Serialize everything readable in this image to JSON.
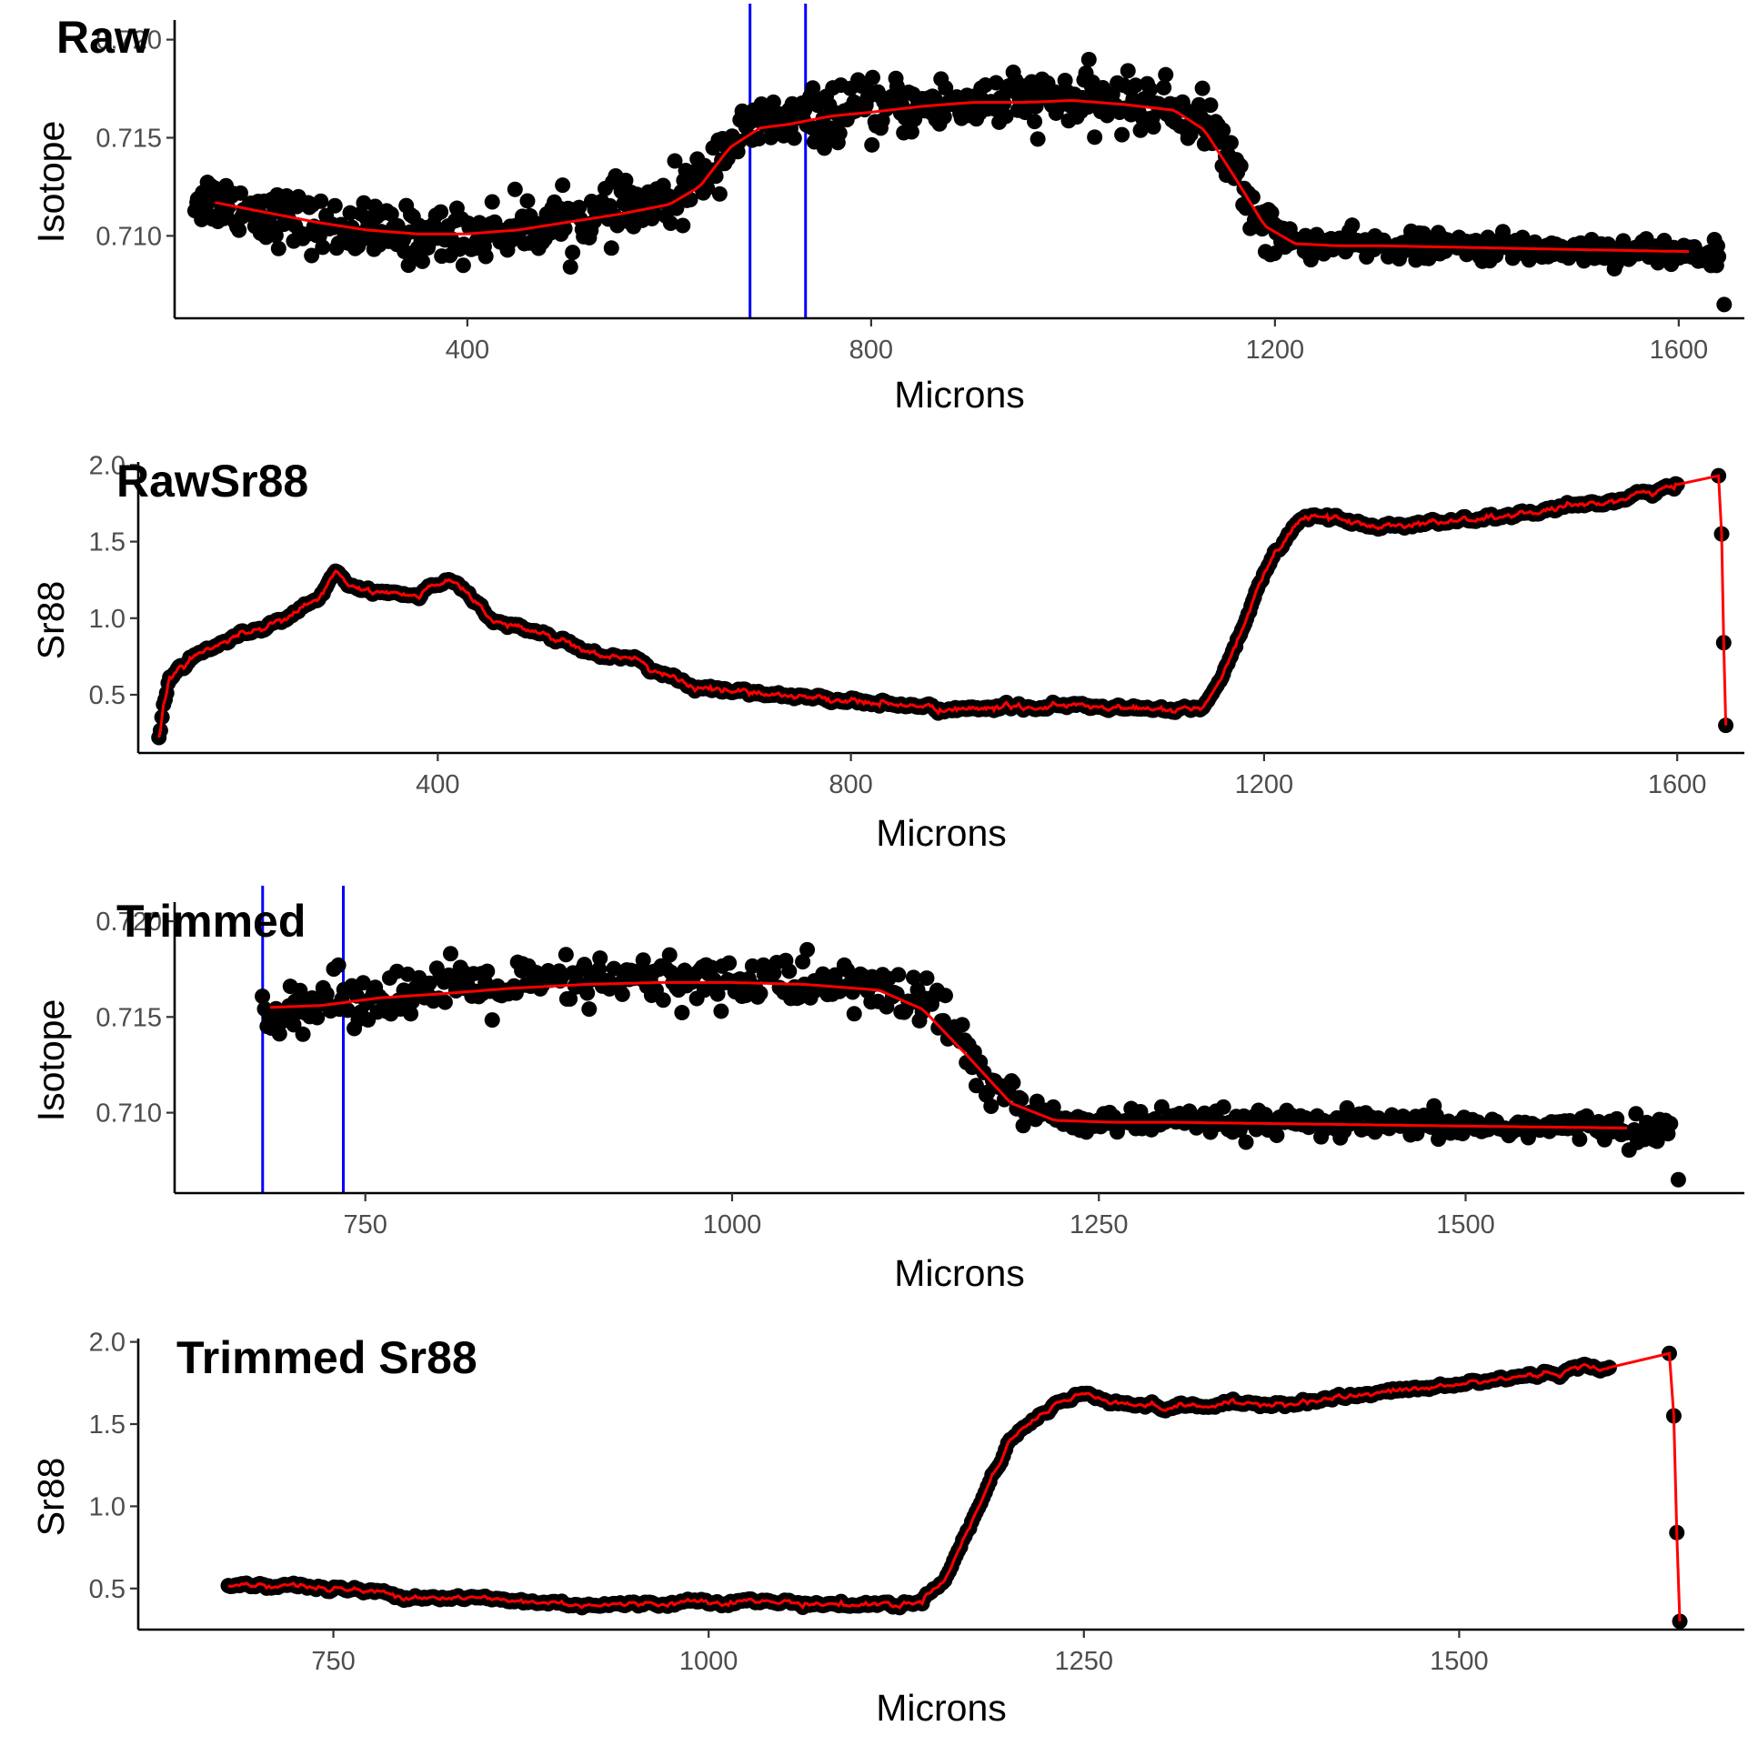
{
  "colors": {
    "points": "#000000",
    "smooth_line": "#ff0000",
    "markers": "#0000ff",
    "background": "#ffffff"
  },
  "chart_data": [
    {
      "id": "raw",
      "type": "scatter",
      "title": "Raw",
      "xlabel": "Microns",
      "ylabel": "Isotope",
      "xlim": [
        110,
        1665
      ],
      "ylim": [
        0.7058,
        0.721
      ],
      "xticks": [
        400,
        800,
        1200,
        1600
      ],
      "xtick_labels": [
        "400",
        "800",
        "1200",
        "1600"
      ],
      "yticks": [
        0.71,
        0.715,
        0.72
      ],
      "ytick_labels": [
        "0.710",
        "0.715",
        "0.720"
      ],
      "vlines": [
        680,
        735
      ],
      "grid": false,
      "noise_sd": 0.0006,
      "series": [
        {
          "name": "",
          "kind": "points",
          "x": [
            130,
            150,
            200,
            250,
            300,
            350,
            400,
            450,
            500,
            550,
            600,
            630,
            660,
            690,
            720,
            760,
            800,
            850,
            900,
            950,
            1000,
            1050,
            1100,
            1140,
            1170,
            1200,
            1230,
            1260,
            1300,
            1400,
            1500,
            1600,
            1640
          ],
          "y": [
            0.712,
            0.7118,
            0.7112,
            0.7105,
            0.7102,
            0.71,
            0.7101,
            0.7104,
            0.7108,
            0.7112,
            0.7117,
            0.7128,
            0.7148,
            0.7157,
            0.7158,
            0.7162,
            0.7164,
            0.7166,
            0.7168,
            0.7169,
            0.7169,
            0.7168,
            0.7165,
            0.7155,
            0.712,
            0.71,
            0.7096,
            0.7095,
            0.7095,
            0.7094,
            0.7093,
            0.7092,
            0.709
          ]
        },
        {
          "name": "",
          "kind": "smooth",
          "x": [
            150,
            200,
            250,
            300,
            350,
            400,
            450,
            500,
            550,
            600,
            630,
            660,
            690,
            720,
            760,
            800,
            850,
            900,
            950,
            1000,
            1050,
            1100,
            1130,
            1160,
            1190,
            1220,
            1260,
            1300,
            1400,
            1500,
            1610
          ],
          "y": [
            0.7117,
            0.7112,
            0.7107,
            0.7103,
            0.7101,
            0.7101,
            0.7103,
            0.7107,
            0.7111,
            0.7116,
            0.7125,
            0.7145,
            0.7155,
            0.7157,
            0.7161,
            0.7163,
            0.7166,
            0.7168,
            0.7168,
            0.7169,
            0.7167,
            0.7164,
            0.7154,
            0.713,
            0.7105,
            0.7096,
            0.7095,
            0.7095,
            0.7094,
            0.7093,
            0.7092
          ]
        }
      ]
    },
    {
      "id": "rawsr88",
      "type": "scatter",
      "title": "RawSr88",
      "xlabel": "Microns",
      "ylabel": "Sr88",
      "xlim": [
        110,
        1665
      ],
      "ylim": [
        0.12,
        2.02
      ],
      "xticks": [
        400,
        800,
        1200,
        1600
      ],
      "xtick_labels": [
        "400",
        "800",
        "1200",
        "1600"
      ],
      "yticks": [
        0.5,
        1.0,
        1.5,
        2.0
      ],
      "ytick_labels": [
        "0.5",
        "1.0",
        "1.5",
        "2.0"
      ],
      "vlines": [],
      "grid": false,
      "noise_sd": 0.008,
      "series": [
        {
          "name": "",
          "kind": "trace",
          "x": [
            130,
            135,
            140,
            160,
            200,
            250,
            285,
            300,
            310,
            340,
            380,
            400,
            410,
            420,
            450,
            500,
            550,
            600,
            650,
            700,
            800,
            900,
            1000,
            1100,
            1140,
            1160,
            1200,
            1230,
            1250,
            1300,
            1400,
            1500,
            1600,
            1640,
            1643,
            1645,
            1647
          ],
          "y": [
            0.21,
            0.45,
            0.62,
            0.74,
            0.87,
            1.0,
            1.12,
            1.3,
            1.22,
            1.17,
            1.14,
            1.23,
            1.26,
            1.23,
            1.0,
            0.9,
            0.78,
            0.7,
            0.54,
            0.52,
            0.46,
            0.4,
            0.43,
            0.4,
            0.41,
            0.6,
            1.3,
            1.62,
            1.68,
            1.6,
            1.64,
            1.72,
            1.86,
            1.93,
            1.55,
            0.84,
            0.3
          ]
        }
      ]
    },
    {
      "id": "trimmed",
      "type": "scatter",
      "title": "Trimmed",
      "xlabel": "Microns",
      "ylabel": "Isotope",
      "xlim": [
        620,
        1690
      ],
      "ylim": [
        0.7058,
        0.721
      ],
      "xticks": [
        750,
        1000,
        1250,
        1500
      ],
      "xtick_labels": [
        "750",
        "1000",
        "1250",
        "1500"
      ],
      "yticks": [
        0.71,
        0.715,
        0.72
      ],
      "ytick_labels": [
        "0.710",
        "0.715",
        "0.720"
      ],
      "vlines": [
        680,
        735
      ],
      "grid": false,
      "noise_sd": 0.0006,
      "series": [
        {
          "name": "",
          "kind": "points",
          "x": [
            680,
            720,
            760,
            800,
            850,
            900,
            950,
            1000,
            1050,
            1100,
            1140,
            1170,
            1200,
            1230,
            1260,
            1300,
            1400,
            1500,
            1600,
            1640
          ],
          "y": [
            0.7155,
            0.7158,
            0.7162,
            0.7164,
            0.7166,
            0.7168,
            0.7169,
            0.7169,
            0.7168,
            0.7165,
            0.7155,
            0.712,
            0.71,
            0.7096,
            0.7095,
            0.7095,
            0.7094,
            0.7093,
            0.7092,
            0.709
          ]
        },
        {
          "name": "",
          "kind": "smooth",
          "x": [
            685,
            720,
            760,
            800,
            850,
            900,
            950,
            1000,
            1050,
            1100,
            1130,
            1160,
            1190,
            1220,
            1260,
            1300,
            1400,
            1500,
            1610
          ],
          "y": [
            0.7155,
            0.7156,
            0.716,
            0.7162,
            0.7165,
            0.7167,
            0.7168,
            0.7168,
            0.7167,
            0.7164,
            0.7154,
            0.713,
            0.7105,
            0.7096,
            0.7095,
            0.7095,
            0.7094,
            0.7093,
            0.7092
          ]
        }
      ]
    },
    {
      "id": "trimmedsr88",
      "type": "scatter",
      "title": "Trimmed Sr88",
      "xlabel": "Microns",
      "ylabel": "Sr88",
      "xlim": [
        620,
        1690
      ],
      "ylim": [
        0.25,
        2.02
      ],
      "xticks": [
        750,
        1000,
        1250,
        1500
      ],
      "xtick_labels": [
        "750",
        "1000",
        "1250",
        "1500"
      ],
      "yticks": [
        0.5,
        1.0,
        1.5,
        2.0
      ],
      "ytick_labels": [
        "0.5",
        "1.0",
        "1.5",
        "2.0"
      ],
      "vlines": [],
      "grid": false,
      "noise_sd": 0.008,
      "series": [
        {
          "name": "",
          "kind": "trace",
          "x": [
            680,
            720,
            800,
            900,
            950,
            1000,
            1100,
            1140,
            1160,
            1180,
            1200,
            1230,
            1250,
            1300,
            1400,
            1500,
            1600,
            1640,
            1643,
            1645,
            1647
          ],
          "y": [
            0.53,
            0.52,
            0.46,
            0.41,
            0.4,
            0.43,
            0.4,
            0.41,
            0.6,
            1.0,
            1.4,
            1.62,
            1.68,
            1.6,
            1.64,
            1.74,
            1.86,
            1.93,
            1.55,
            0.84,
            0.3
          ]
        }
      ]
    }
  ]
}
